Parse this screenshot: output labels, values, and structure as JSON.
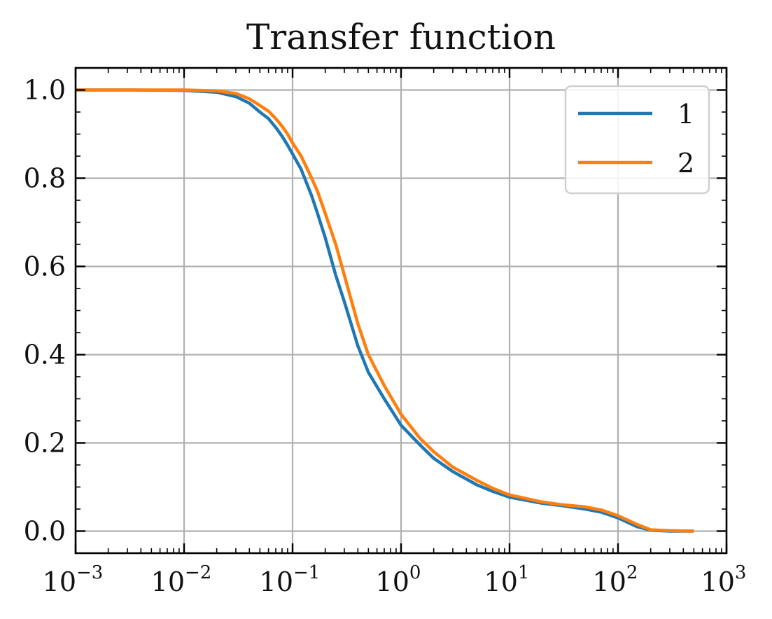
{
  "chart_data": {
    "type": "line",
    "title": "Transfer function",
    "xlabel": "",
    "ylabel": "",
    "xscale": "log",
    "xlim": [
      0.001,
      1000
    ],
    "ylim": [
      -0.05,
      1.05
    ],
    "grid": true,
    "legend_position": "top-right",
    "x_ticks": [
      {
        "value": 0.001,
        "base": "10",
        "exp": "−3"
      },
      {
        "value": 0.01,
        "base": "10",
        "exp": "−2"
      },
      {
        "value": 0.1,
        "base": "10",
        "exp": "−1"
      },
      {
        "value": 1,
        "base": "10",
        "exp": "0"
      },
      {
        "value": 10,
        "base": "10",
        "exp": "1"
      },
      {
        "value": 100,
        "base": "10",
        "exp": "2"
      },
      {
        "value": 1000,
        "base": "10",
        "exp": "3"
      }
    ],
    "y_ticks": [
      {
        "value": 0.0,
        "label": "0.0"
      },
      {
        "value": 0.2,
        "label": "0.2"
      },
      {
        "value": 0.4,
        "label": "0.4"
      },
      {
        "value": 0.6,
        "label": "0.6"
      },
      {
        "value": 0.8,
        "label": "0.8"
      },
      {
        "value": 1.0,
        "label": "1.0"
      }
    ],
    "series": [
      {
        "name": "1",
        "color": "#1f77b4",
        "x": [
          0.001,
          0.003,
          0.01,
          0.02,
          0.03,
          0.04,
          0.05,
          0.06,
          0.07,
          0.08,
          0.09,
          0.1,
          0.12,
          0.15,
          0.17,
          0.2,
          0.25,
          0.3,
          0.4,
          0.5,
          0.7,
          1,
          1.5,
          2,
          3,
          5,
          7,
          10,
          20,
          30,
          50,
          70,
          100,
          150,
          200,
          300,
          500
        ],
        "y": [
          1.0,
          1.0,
          0.999,
          0.995,
          0.985,
          0.97,
          0.95,
          0.935,
          0.915,
          0.895,
          0.875,
          0.855,
          0.82,
          0.76,
          0.72,
          0.665,
          0.58,
          0.52,
          0.42,
          0.36,
          0.3,
          0.24,
          0.195,
          0.165,
          0.135,
          0.105,
          0.09,
          0.077,
          0.063,
          0.058,
          0.05,
          0.043,
          0.03,
          0.01,
          0.002,
          0.0,
          0.0
        ]
      },
      {
        "name": "2",
        "color": "#ff7f0e",
        "x": [
          0.001,
          0.003,
          0.01,
          0.02,
          0.03,
          0.04,
          0.05,
          0.06,
          0.07,
          0.08,
          0.09,
          0.1,
          0.12,
          0.15,
          0.17,
          0.2,
          0.25,
          0.3,
          0.4,
          0.5,
          0.7,
          1,
          1.5,
          2,
          3,
          5,
          7,
          10,
          20,
          30,
          50,
          70,
          100,
          150,
          200,
          300,
          500
        ],
        "y": [
          1.0,
          1.0,
          1.0,
          0.998,
          0.992,
          0.98,
          0.965,
          0.952,
          0.935,
          0.918,
          0.9,
          0.88,
          0.85,
          0.8,
          0.77,
          0.72,
          0.65,
          0.58,
          0.47,
          0.4,
          0.33,
          0.265,
          0.21,
          0.18,
          0.145,
          0.115,
          0.097,
          0.082,
          0.066,
          0.06,
          0.055,
          0.048,
          0.035,
          0.015,
          0.003,
          0.001,
          0.0
        ]
      }
    ]
  }
}
